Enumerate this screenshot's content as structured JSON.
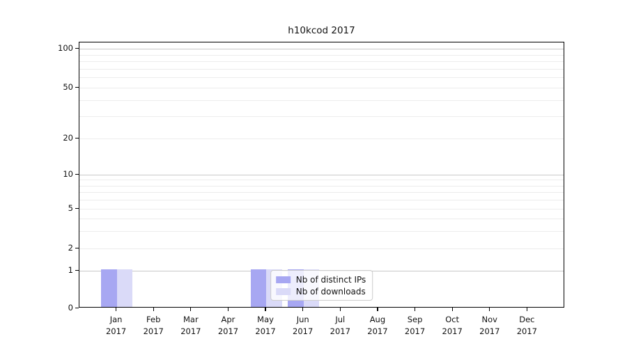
{
  "chart_data": {
    "type": "bar",
    "title": "h10kcod 2017",
    "categories": [
      "Jan",
      "Feb",
      "Mar",
      "Apr",
      "May",
      "Jun",
      "Jul",
      "Aug",
      "Sep",
      "Oct",
      "Nov",
      "Dec"
    ],
    "x_sublabel": "2017",
    "series": [
      {
        "name": "Nb of distinct IPs",
        "color": "#a7a7f2",
        "values": [
          1,
          0,
          0,
          0,
          1,
          1,
          0,
          0,
          0,
          0,
          0,
          0
        ]
      },
      {
        "name": "Nb of downloads",
        "color": "#dadaf8",
        "values": [
          1,
          0,
          0,
          0,
          1,
          1,
          0,
          0,
          0,
          0,
          0,
          0
        ]
      }
    ],
    "yticks": [
      100,
      50,
      20,
      10,
      5,
      2,
      1,
      0
    ],
    "ylim": [
      0,
      100
    ],
    "yscale": "symlog",
    "grid": true,
    "legend_position": "lower center",
    "colors": {
      "grid_major": "#c8c8c8",
      "grid_minor": "#ececec",
      "axis": "#000000",
      "text": "#111111"
    }
  }
}
